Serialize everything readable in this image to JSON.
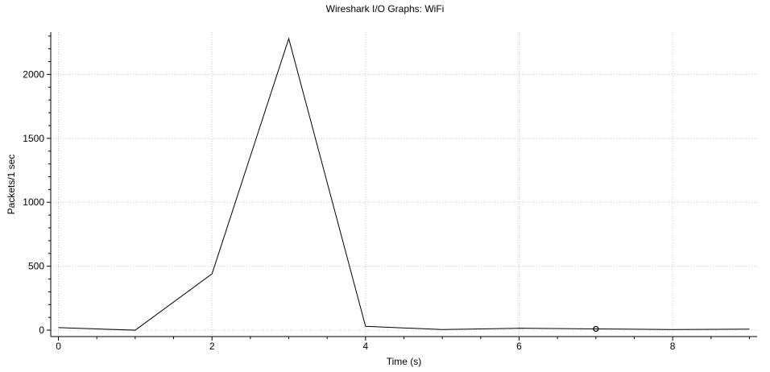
{
  "chart_data": {
    "type": "line",
    "title": "Wireshark I/O Graphs: WiFi",
    "xlabel": "Time (s)",
    "ylabel": "Packets/1 sec",
    "xlim": [
      -0.1,
      9.1
    ],
    "ylim": [
      -50,
      2330
    ],
    "x_ticks": [
      0,
      2,
      4,
      6,
      8
    ],
    "x_minor_step": 0.5,
    "y_ticks": [
      0,
      500,
      1000,
      1500,
      2000
    ],
    "y_minor_step": 100,
    "grid": true,
    "series": [
      {
        "x": [
          0,
          1,
          2,
          3,
          4,
          5,
          6,
          7,
          8,
          9
        ],
        "values": [
          20,
          0,
          440,
          2280,
          30,
          5,
          15,
          10,
          5,
          8
        ],
        "color": "#000000"
      }
    ],
    "marker_point": {
      "x": 7,
      "y": 10
    }
  }
}
